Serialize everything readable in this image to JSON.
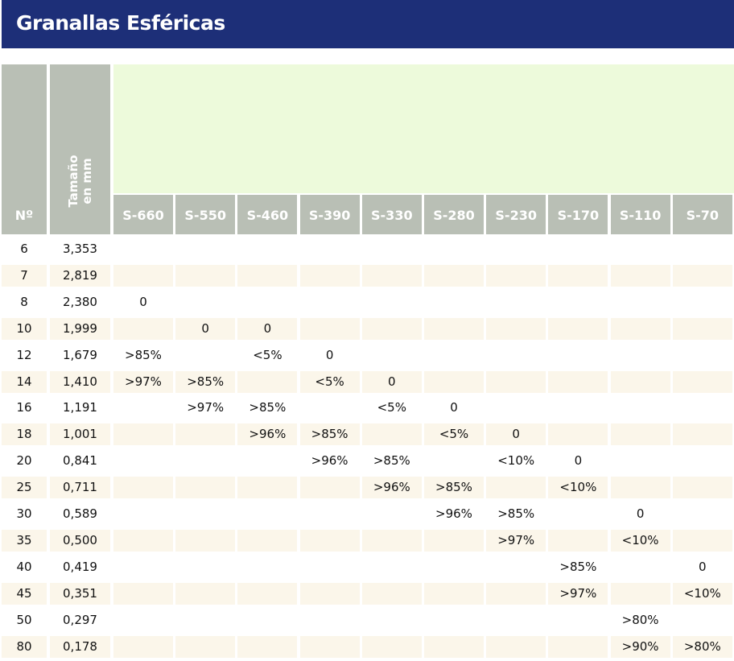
{
  "title": "Granallas Esféricas",
  "headers": {
    "no": "Nº",
    "size": "Tamaño en mm"
  },
  "grades": [
    "S-660",
    "S-550",
    "S-460",
    "S-390",
    "S-330",
    "S-280",
    "S-230",
    "S-170",
    "S-110",
    "S-70"
  ],
  "rows": [
    {
      "no": "6",
      "size": "3,353",
      "values": [
        "",
        "",
        "",
        "",
        "",
        "",
        "",
        "",
        "",
        ""
      ]
    },
    {
      "no": "7",
      "size": "2,819",
      "values": [
        "",
        "",
        "",
        "",
        "",
        "",
        "",
        "",
        "",
        ""
      ]
    },
    {
      "no": "8",
      "size": "2,380",
      "values": [
        "0",
        "",
        "",
        "",
        "",
        "",
        "",
        "",
        "",
        ""
      ]
    },
    {
      "no": "10",
      "size": "1,999",
      "values": [
        "",
        "0",
        "0",
        "",
        "",
        "",
        "",
        "",
        "",
        ""
      ]
    },
    {
      "no": "12",
      "size": "1,679",
      "values": [
        ">85%",
        "",
        "<5%",
        "0",
        "",
        "",
        "",
        "",
        "",
        ""
      ]
    },
    {
      "no": "14",
      "size": "1,410",
      "values": [
        ">97%",
        ">85%",
        "",
        "<5%",
        "0",
        "",
        "",
        "",
        "",
        ""
      ]
    },
    {
      "no": "16",
      "size": "1,191",
      "values": [
        "",
        ">97%",
        ">85%",
        "",
        "<5%",
        "0",
        "",
        "",
        "",
        ""
      ]
    },
    {
      "no": "18",
      "size": "1,001",
      "values": [
        "",
        "",
        ">96%",
        ">85%",
        "",
        "<5%",
        "0",
        "",
        "",
        ""
      ]
    },
    {
      "no": "20",
      "size": "0,841",
      "values": [
        "",
        "",
        "",
        ">96%",
        ">85%",
        "",
        "<10%",
        "0",
        "",
        ""
      ]
    },
    {
      "no": "25",
      "size": "0,711",
      "values": [
        "",
        "",
        "",
        "",
        ">96%",
        ">85%",
        "",
        "<10%",
        "",
        ""
      ]
    },
    {
      "no": "30",
      "size": "0,589",
      "values": [
        "",
        "",
        "",
        "",
        "",
        ">96%",
        ">85%",
        "",
        "0",
        ""
      ]
    },
    {
      "no": "35",
      "size": "0,500",
      "values": [
        "",
        "",
        "",
        "",
        "",
        "",
        ">97%",
        "",
        "<10%",
        ""
      ]
    },
    {
      "no": "40",
      "size": "0,419",
      "values": [
        "",
        "",
        "",
        "",
        "",
        "",
        "",
        ">85%",
        "",
        "0"
      ]
    },
    {
      "no": "45",
      "size": "0,351",
      "values": [
        "",
        "",
        "",
        "",
        "",
        "",
        "",
        ">97%",
        "",
        "<10%"
      ]
    },
    {
      "no": "50",
      "size": "0,297",
      "values": [
        "",
        "",
        "",
        "",
        "",
        "",
        "",
        "",
        ">80%",
        ""
      ]
    },
    {
      "no": "80",
      "size": "0,178",
      "values": [
        "",
        "",
        "",
        "",
        "",
        "",
        "",
        "",
        ">90%",
        ">80%"
      ]
    }
  ],
  "colors": {
    "title_bar": "#1d2f78",
    "header": "#b9bfb5",
    "header_band": "#edfadb",
    "row_shade": "#fbf6ea"
  }
}
